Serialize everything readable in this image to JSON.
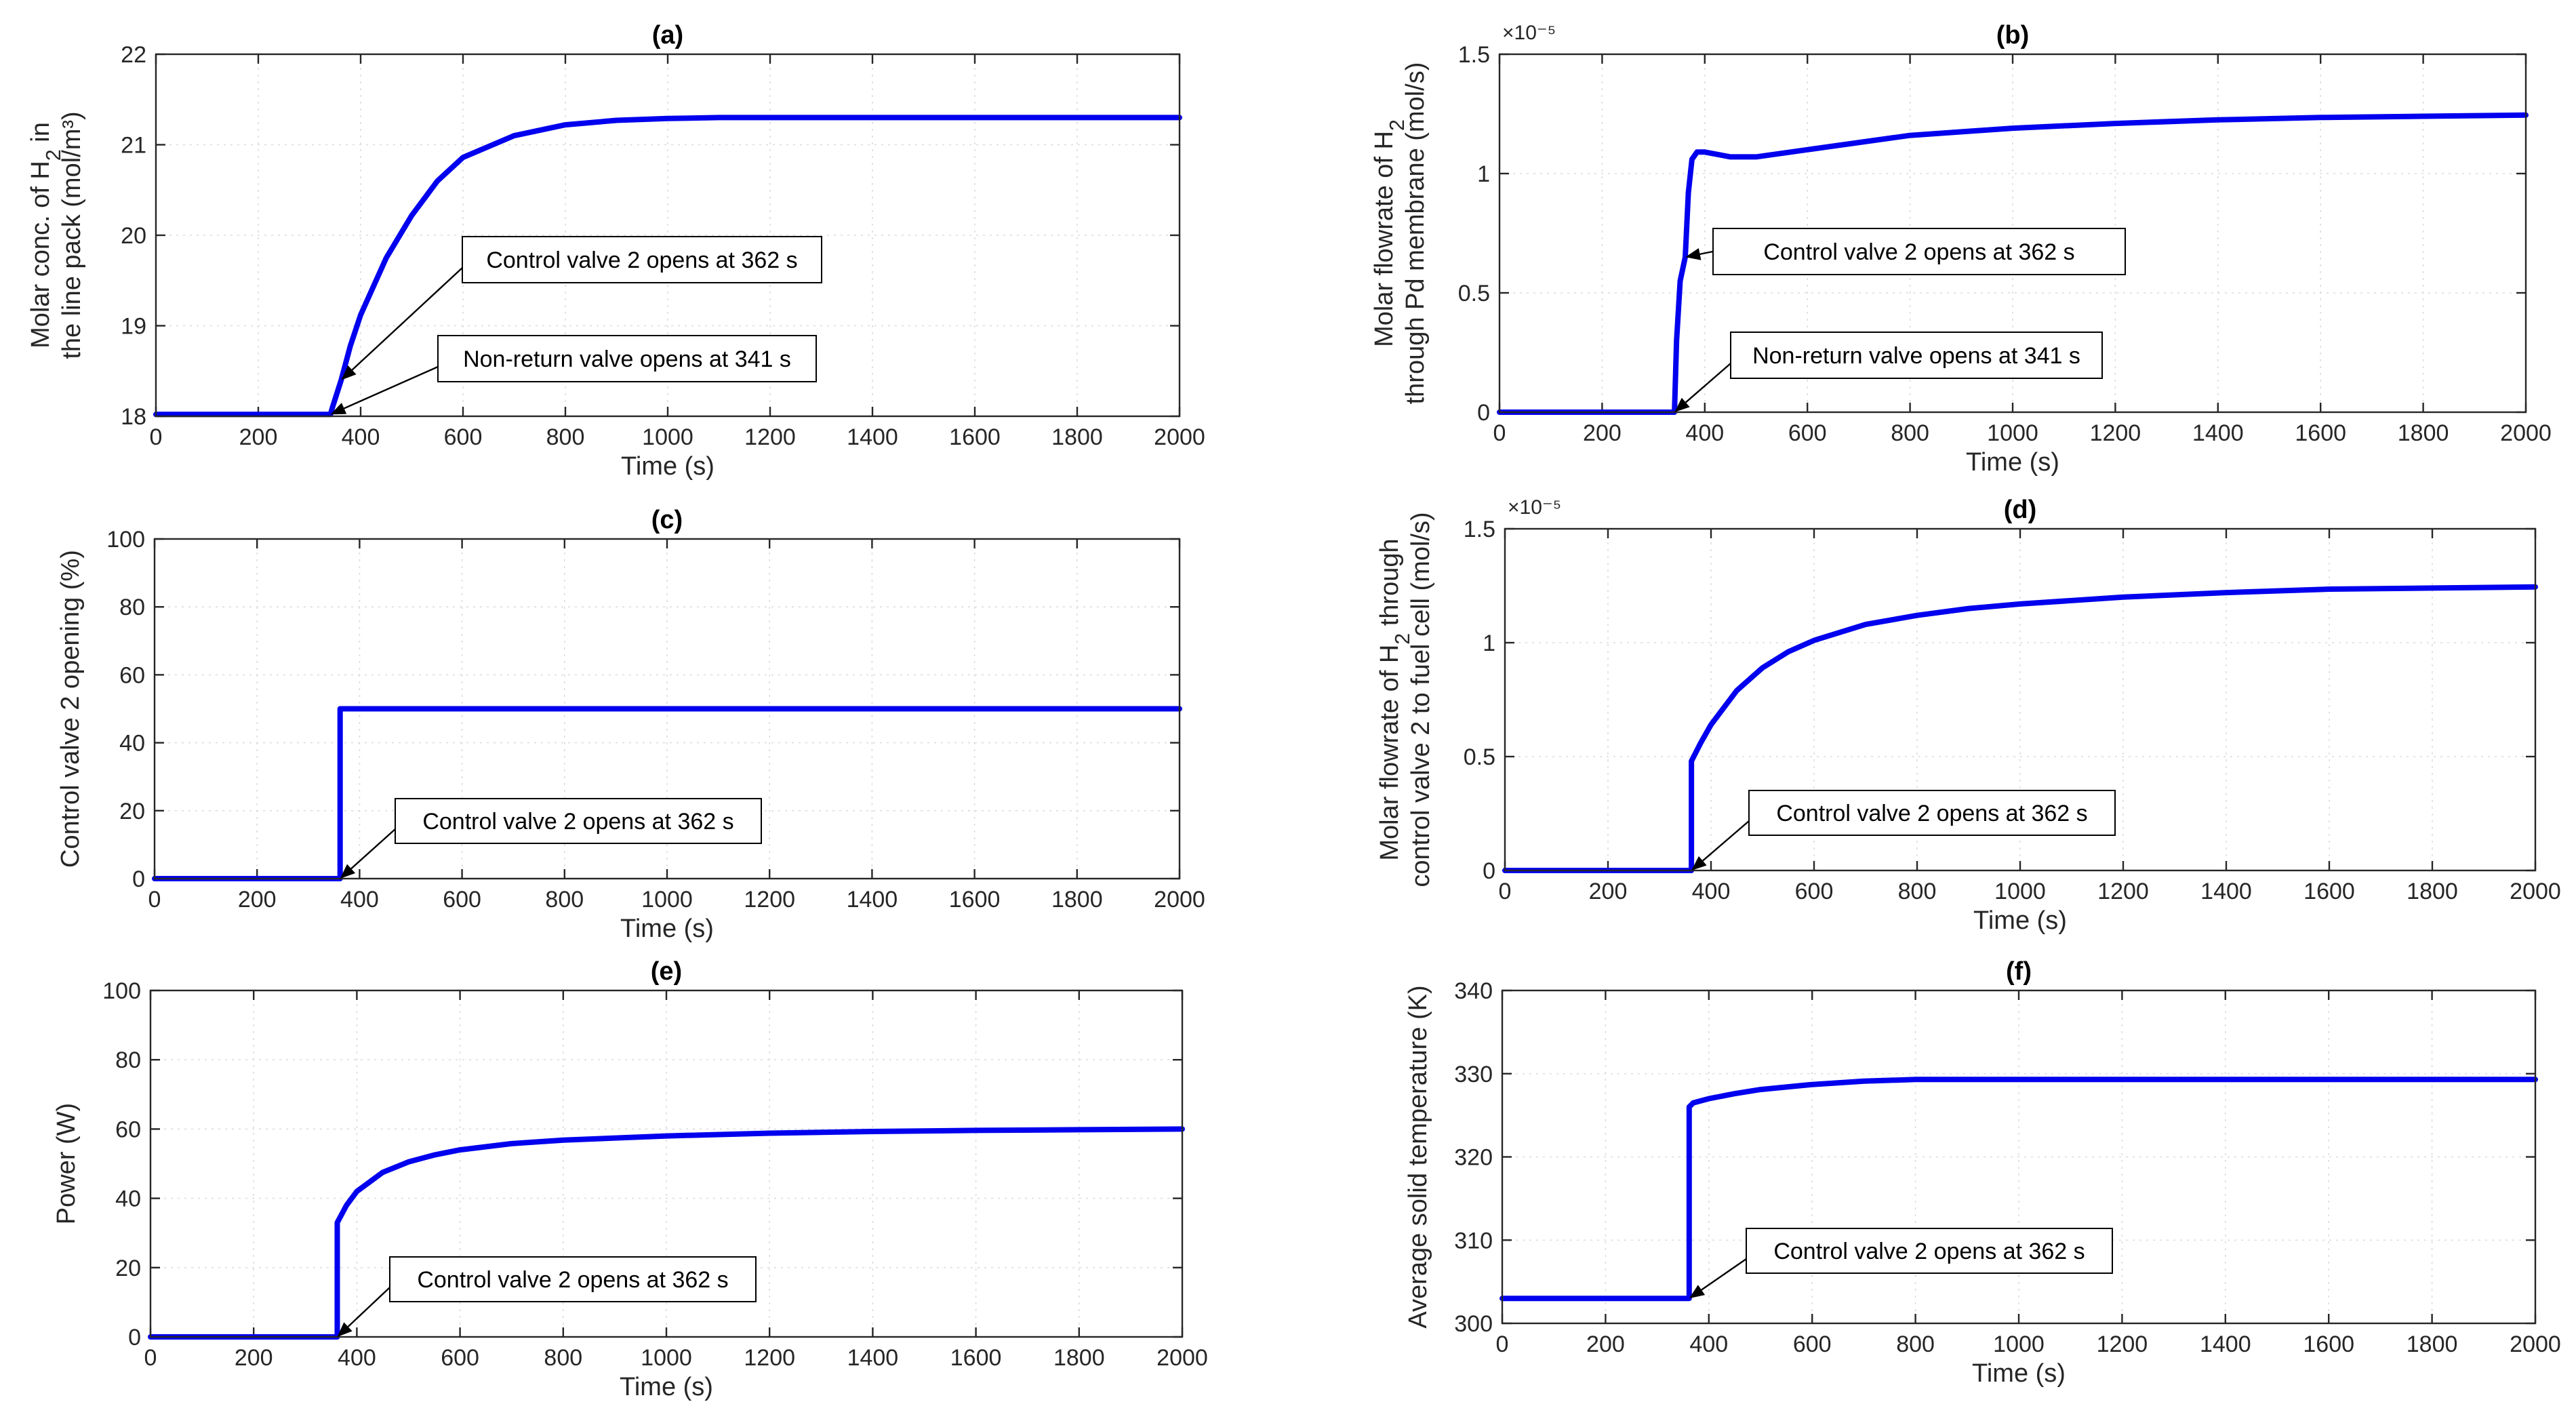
{
  "chart_data": [
    {
      "id": "a",
      "type": "line",
      "title": "(a)",
      "xlabel": "Time (s)",
      "ylabel_lines": [
        "Molar conc. of H₂ in",
        "the line pack (mol/m³)"
      ],
      "xlim": [
        0,
        2000
      ],
      "ylim": [
        18,
        22
      ],
      "xticks": [
        "0",
        "200",
        "400",
        "600",
        "800",
        "1000",
        "1200",
        "1400",
        "1600",
        "1800",
        "2000"
      ],
      "yticks": [
        "18",
        "19",
        "20",
        "21",
        "22"
      ],
      "exponent": "",
      "series": [
        {
          "name": "H2 concentration",
          "x": [
            0,
            341,
            345,
            362,
            380,
            400,
            450,
            500,
            550,
            600,
            700,
            800,
            900,
            1000,
            1100,
            1200,
            1400,
            1600,
            1800,
            2000
          ],
          "y": [
            18.02,
            18.02,
            18.1,
            18.4,
            18.78,
            19.12,
            19.75,
            20.22,
            20.6,
            20.86,
            21.1,
            21.22,
            21.27,
            21.29,
            21.3,
            21.3,
            21.3,
            21.3,
            21.3,
            21.3
          ]
        }
      ],
      "annotations": [
        {
          "text": "Control valve 2 opens at 362 s",
          "x": 362,
          "y": 18.4
        },
        {
          "text": "Non-return valve opens at 341 s",
          "x": 341,
          "y": 18.02
        }
      ]
    },
    {
      "id": "b",
      "type": "line",
      "title": "(b)",
      "xlabel": "Time (s)",
      "ylabel_lines": [
        "Molar flowrate of  H₂",
        "through Pd membrane (mol/s)"
      ],
      "xlim": [
        0,
        2000
      ],
      "ylim": [
        0,
        1.5
      ],
      "xticks": [
        "0",
        "200",
        "400",
        "600",
        "800",
        "1000",
        "1200",
        "1400",
        "1600",
        "1800",
        "2000"
      ],
      "yticks": [
        "0",
        "0.5",
        "1",
        "1.5"
      ],
      "exponent": "×10⁻⁵",
      "series": [
        {
          "name": "H2 flowrate through Pd membrane",
          "x": [
            0,
            341,
            345,
            352,
            362,
            368,
            375,
            385,
            400,
            450,
            500,
            600,
            800,
            1000,
            1200,
            1400,
            1600,
            1800,
            2000
          ],
          "y": [
            0,
            0,
            0.3,
            0.55,
            0.65,
            0.92,
            1.06,
            1.09,
            1.09,
            1.07,
            1.07,
            1.1,
            1.16,
            1.19,
            1.21,
            1.225,
            1.235,
            1.24,
            1.245
          ]
        }
      ],
      "annotations": [
        {
          "text": "Control valve 2 opens at 362 s",
          "x": 362,
          "y": 0.65
        },
        {
          "text": "Non-return valve opens at 341 s",
          "x": 341,
          "y": 0
        }
      ]
    },
    {
      "id": "c",
      "type": "line",
      "title": "(c)",
      "xlabel": "Time (s)",
      "ylabel_lines": [
        "Control valve 2 opening (%)"
      ],
      "xlim": [
        0,
        2000
      ],
      "ylim": [
        0,
        100
      ],
      "xticks": [
        "0",
        "200",
        "400",
        "600",
        "800",
        "1000",
        "1200",
        "1400",
        "1600",
        "1800",
        "2000"
      ],
      "yticks": [
        "0",
        "20",
        "40",
        "60",
        "80",
        "100"
      ],
      "exponent": "",
      "series": [
        {
          "name": "Valve opening",
          "x": [
            0,
            362,
            362,
            2000
          ],
          "y": [
            0,
            0,
            50,
            50
          ]
        }
      ],
      "annotations": [
        {
          "text": "Control valve 2 opens at 362 s",
          "x": 362,
          "y": 0
        }
      ]
    },
    {
      "id": "d",
      "type": "line",
      "title": "(d)",
      "xlabel": "Time (s)",
      "ylabel_lines": [
        "Molar flowrate of  H₂ through",
        "control valve 2 to fuel cell (mol/s)"
      ],
      "xlim": [
        0,
        2000
      ],
      "ylim": [
        0,
        1.5
      ],
      "xticks": [
        "0",
        "200",
        "400",
        "600",
        "800",
        "1000",
        "1200",
        "1400",
        "1600",
        "1800",
        "2000"
      ],
      "yticks": [
        "0",
        "0.5",
        "1",
        "1.5"
      ],
      "exponent": "×10⁻⁵",
      "series": [
        {
          "name": "H2 flowrate to fuel cell",
          "x": [
            0,
            362,
            362,
            380,
            400,
            450,
            500,
            550,
            600,
            700,
            800,
            900,
            1000,
            1200,
            1400,
            1600,
            1800,
            2000
          ],
          "y": [
            0,
            0,
            0.48,
            0.56,
            0.64,
            0.79,
            0.89,
            0.96,
            1.01,
            1.08,
            1.12,
            1.15,
            1.17,
            1.2,
            1.22,
            1.235,
            1.24,
            1.245
          ]
        }
      ],
      "annotations": [
        {
          "text": "Control valve 2 opens at 362 s",
          "x": 362,
          "y": 0
        }
      ]
    },
    {
      "id": "e",
      "type": "line",
      "title": "(e)",
      "xlabel": "Time (s)",
      "ylabel_lines": [
        "Power (W)"
      ],
      "xlim": [
        0,
        2000
      ],
      "ylim": [
        0,
        100
      ],
      "xticks": [
        "0",
        "200",
        "400",
        "600",
        "800",
        "1000",
        "1200",
        "1400",
        "1600",
        "1800",
        "2000"
      ],
      "yticks": [
        "0",
        "20",
        "40",
        "60",
        "80",
        "100"
      ],
      "exponent": "",
      "series": [
        {
          "name": "Power",
          "x": [
            0,
            362,
            362,
            380,
            400,
            450,
            500,
            550,
            600,
            700,
            800,
            1000,
            1200,
            1400,
            1600,
            1800,
            2000
          ],
          "y": [
            0,
            0,
            33,
            38,
            42,
            47.5,
            50.5,
            52.5,
            54,
            55.8,
            56.8,
            58,
            58.8,
            59.3,
            59.6,
            59.8,
            60
          ]
        }
      ],
      "annotations": [
        {
          "text": "Control valve 2 opens at 362 s",
          "x": 362,
          "y": 0
        }
      ]
    },
    {
      "id": "f",
      "type": "line",
      "title": "(f)",
      "xlabel": "Time (s)",
      "ylabel_lines": [
        "Average solid temperature (K)"
      ],
      "xlim": [
        0,
        2000
      ],
      "ylim": [
        300,
        340
      ],
      "xticks": [
        "0",
        "200",
        "400",
        "600",
        "800",
        "1000",
        "1200",
        "1400",
        "1600",
        "1800",
        "2000"
      ],
      "yticks": [
        "300",
        "310",
        "320",
        "330",
        "340"
      ],
      "exponent": "",
      "series": [
        {
          "name": "Average solid temperature",
          "x": [
            0,
            362,
            362,
            370,
            400,
            450,
            500,
            600,
            700,
            800,
            1000,
            1200,
            1400,
            1600,
            1800,
            2000
          ],
          "y": [
            303,
            303,
            326,
            326.5,
            327,
            327.6,
            328.1,
            328.7,
            329.1,
            329.3,
            329.3,
            329.3,
            329.3,
            329.3,
            329.3,
            329.3
          ]
        }
      ],
      "annotations": [
        {
          "text": "Control valve 2 opens at 362 s",
          "x": 362,
          "y": 303
        }
      ]
    }
  ]
}
